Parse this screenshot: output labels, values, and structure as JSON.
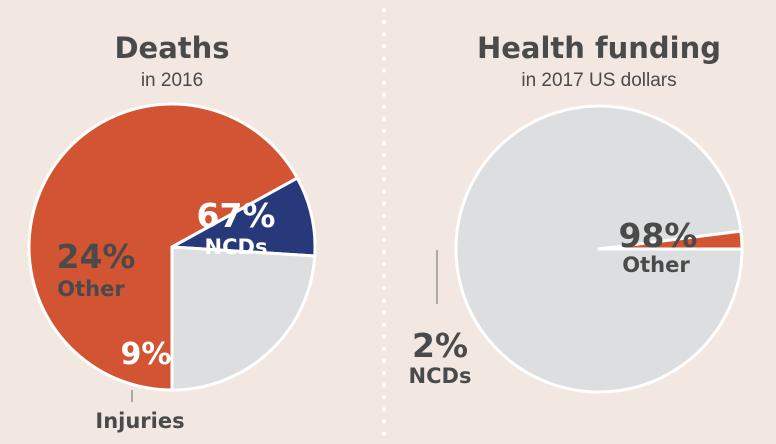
{
  "colors": {
    "background": "#f3e7e1",
    "ncds": "#d35432",
    "other": "#dcdedf",
    "injuries": "#27397a",
    "text": "#4a4a4a",
    "white": "#ffffff",
    "divider": "#ffffff"
  },
  "chart_data": [
    {
      "type": "pie",
      "title": "Deaths",
      "subtitle": "in 2016",
      "slices": [
        {
          "label": "NCDs",
          "value": 67,
          "display": "67%",
          "color": "#d35432"
        },
        {
          "label": "Injuries",
          "value": 9,
          "display": "9%",
          "color": "#27397a"
        },
        {
          "label": "Other",
          "value": 24,
          "display": "24%",
          "color": "#dcdedf"
        }
      ]
    },
    {
      "type": "pie",
      "title": "Health funding",
      "subtitle": "in 2017 US dollars",
      "slices": [
        {
          "label": "Other",
          "value": 98,
          "display": "98%",
          "color": "#dcdedf"
        },
        {
          "label": "NCDs",
          "value": 2,
          "display": "2%",
          "color": "#d35432"
        }
      ]
    }
  ]
}
